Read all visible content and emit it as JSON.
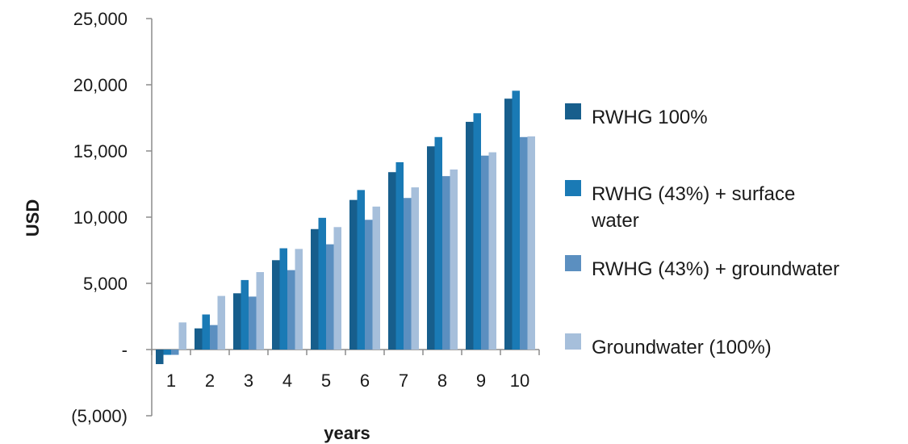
{
  "chart_data": {
    "type": "bar",
    "title": "",
    "xlabel": "years",
    "ylabel": "USD",
    "categories": [
      "1",
      "2",
      "3",
      "4",
      "5",
      "6",
      "7",
      "8",
      "9",
      "10"
    ],
    "ylim": [
      -5000,
      25000
    ],
    "yticks": [
      {
        "value": 25000,
        "label": "25,000"
      },
      {
        "value": 20000,
        "label": "20,000"
      },
      {
        "value": 15000,
        "label": "15,000"
      },
      {
        "value": 10000,
        "label": "10,000"
      },
      {
        "value": 5000,
        "label": "5,000"
      },
      {
        "value": 0,
        "label": "-"
      },
      {
        "value": -5000,
        "label": "(5,000)"
      }
    ],
    "grid": false,
    "legend_position": "right",
    "series": [
      {
        "name": "RWHG 100%",
        "color": "#175e8c",
        "values": [
          -1100,
          1600,
          4250,
          6750,
          9100,
          11300,
          13400,
          15350,
          17200,
          18950
        ]
      },
      {
        "name": "RWHG (43%) + surface water",
        "legend_lines": [
          "RWHG (43%) + surface",
          "water"
        ],
        "color": "#1a7ab5",
        "values": [
          -400,
          2650,
          5250,
          7650,
          9950,
          12050,
          14150,
          16050,
          17850,
          19550
        ]
      },
      {
        "name": "RWHG (43%) + groundwater",
        "color": "#5b8fc0",
        "values": [
          -400,
          1850,
          4000,
          6000,
          7950,
          9800,
          11450,
          13100,
          14650,
          16050
        ]
      },
      {
        "name": "Groundwater (100%)",
        "color": "#a6bfdb",
        "values": [
          2050,
          4050,
          5850,
          7600,
          9250,
          10800,
          12250,
          13600,
          14900,
          16100
        ]
      }
    ]
  }
}
